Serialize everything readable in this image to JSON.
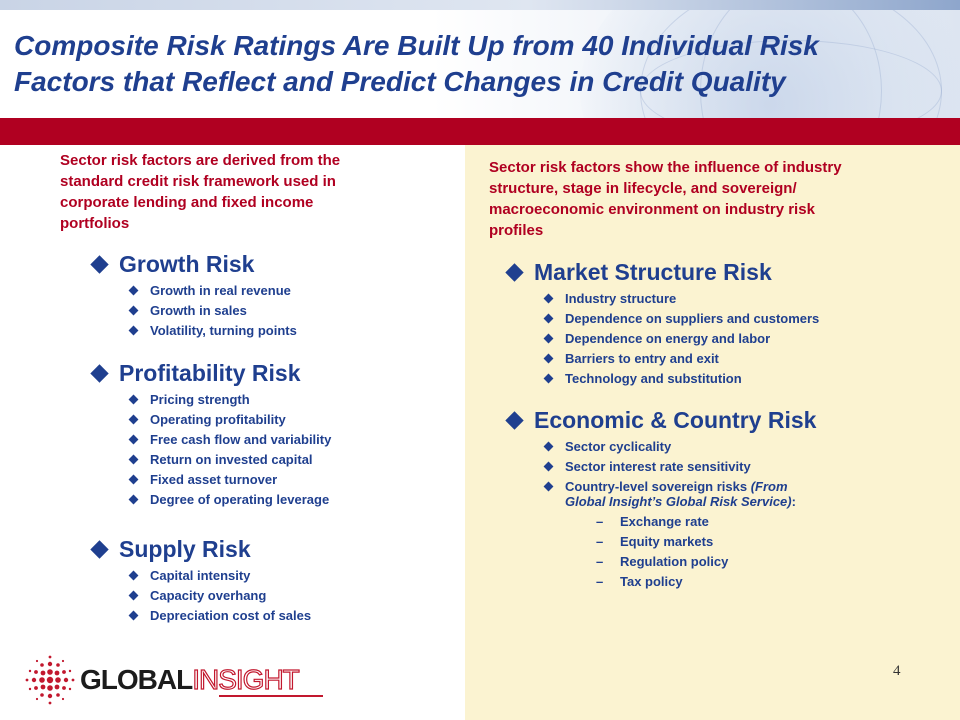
{
  "slide": {
    "title_line1": "Composite Risk Ratings Are Built Up from 40 Individual Risk",
    "title_line2": "Factors that Reflect and Predict Changes in Credit Quality",
    "page_number": "4"
  },
  "left": {
    "intro_lines": [
      "Sector risk factors are derived from the",
      "standard credit risk framework used in",
      "corporate lending and fixed income",
      "portfolios"
    ],
    "sections": [
      {
        "heading": "Growth Risk",
        "items": [
          "Growth in real revenue",
          "Growth in sales",
          "Volatility, turning points"
        ]
      },
      {
        "heading": "Profitability Risk",
        "items": [
          "Pricing strength",
          "Operating profitability",
          "Free cash flow and variability",
          "Return on invested capital",
          "Fixed asset turnover",
          "Degree of operating leverage"
        ]
      },
      {
        "heading": "Supply Risk",
        "items": [
          "Capital intensity",
          "Capacity overhang",
          "Depreciation cost of sales"
        ]
      }
    ]
  },
  "right": {
    "intro_lines": [
      "Sector risk factors show the influence of industry",
      "structure, stage in lifecycle, and sovereign/",
      "macroeconomic environment on industry risk",
      "profiles"
    ],
    "sections": [
      {
        "heading": "Market Structure Risk",
        "items": [
          "Industry structure",
          "Dependence on suppliers and customers",
          "Dependence on energy and labor",
          "Barriers to entry and exit",
          "Technology and substitution"
        ]
      },
      {
        "heading": "Economic & Country Risk",
        "items": [
          "Sector cyclicality",
          "Sector interest rate sensitivity"
        ],
        "sovereign_item": {
          "line1_text": "Country-level sovereign risks ",
          "line1_italic": "(From",
          "line2_italic": "Global Insight’s Global Risk Service)",
          "line2_text": ":"
        },
        "sub_dash": "–",
        "subitems": [
          "Exchange rate",
          "Equity markets",
          "Regulation policy",
          "Tax policy"
        ]
      }
    ]
  },
  "logo": {
    "word1": "GLOBAL",
    "word2": "INSIGHT",
    "colors": {
      "global": "#1c1c1c",
      "insight": "#c2182e"
    }
  },
  "colors": {
    "title_blue": "#1f3f8f",
    "accent_red": "#b00021",
    "panel_cream": "#fbf3d1"
  }
}
